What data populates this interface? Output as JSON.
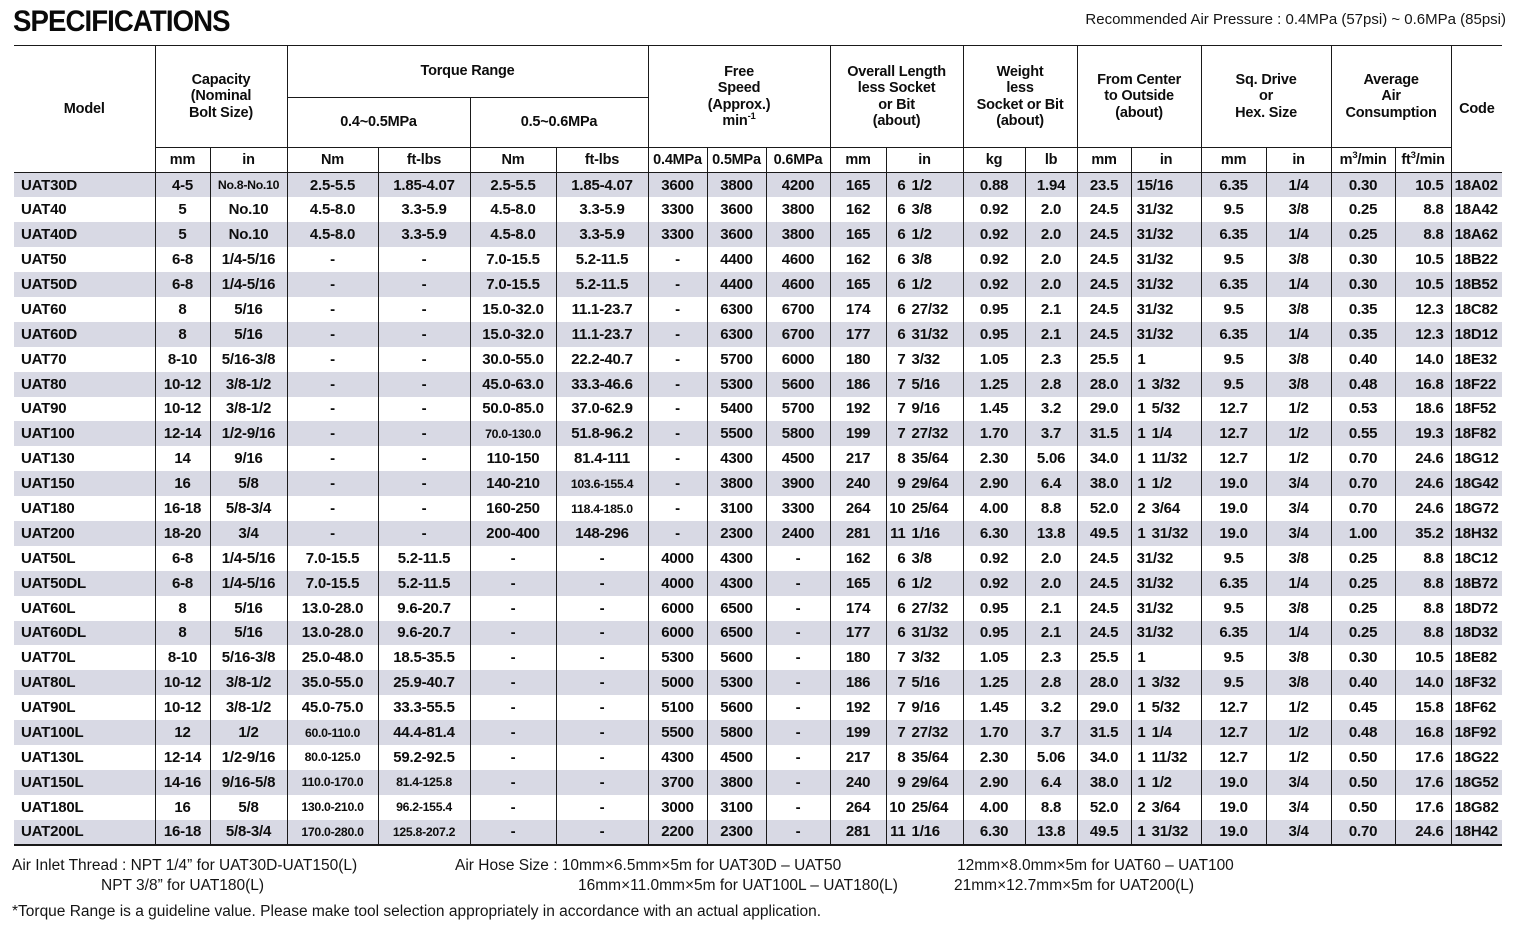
{
  "page": {
    "title": "SPECIFICATIONS",
    "air_pressure_note": "Recommended Air Pressure : 0.4MPa (57psi) ~ 0.6MPa (85psi)"
  },
  "table": {
    "header_rows": [
      [
        {
          "text": "Model",
          "rowspan": 3
        },
        {
          "text": "Capacity\n(Nominal\nBolt Size)",
          "colspan": 2,
          "rowspan": 2
        },
        {
          "text": "Torque Range",
          "colspan": 4
        },
        {
          "text": "Free\nSpeed\n(Approx.)\nmin^-1",
          "colspan": 3,
          "rowspan": 2
        },
        {
          "text": "Overall Length\nless Socket\nor Bit\n(about)",
          "colspan": 2,
          "rowspan": 2
        },
        {
          "text": "Weight\nless\nSocket or Bit\n(about)",
          "colspan": 2,
          "rowspan": 2
        },
        {
          "text": "From Center\nto Outside\n(about)",
          "colspan": 2,
          "rowspan": 2
        },
        {
          "text": "Sq. Drive\nor\nHex. Size",
          "colspan": 2,
          "rowspan": 2
        },
        {
          "text": "Average\nAir\nConsumption",
          "colspan": 2,
          "rowspan": 2
        },
        {
          "text": "Code",
          "rowspan": 3
        }
      ],
      [
        {
          "text": "0.4~0.5MPa",
          "colspan": 2
        },
        {
          "text": "0.5~0.6MPa",
          "colspan": 2
        }
      ],
      [
        {
          "text": "mm"
        },
        {
          "text": "in"
        },
        {
          "text": "Nm"
        },
        {
          "text": "ft-lbs"
        },
        {
          "text": "Nm"
        },
        {
          "text": "ft-lbs"
        },
        {
          "text": "0.4MPa"
        },
        {
          "text": "0.5MPa"
        },
        {
          "text": "0.6MPa"
        },
        {
          "text": "mm"
        },
        {
          "text": "in"
        },
        {
          "text": "kg"
        },
        {
          "text": "lb"
        },
        {
          "text": "mm"
        },
        {
          "text": "in"
        },
        {
          "text": "mm"
        },
        {
          "text": "in"
        },
        {
          "text": "m^3/min"
        },
        {
          "text": "ft^3/min"
        }
      ]
    ],
    "rows": [
      [
        "UAT30D",
        "4-5",
        "No.8-No.10",
        "2.5-5.5",
        "1.85-4.07",
        "2.5-5.5",
        "1.85-4.07",
        "3600",
        "3800",
        "4200",
        "165",
        "6 1/2",
        "0.88",
        "1.94",
        "23.5",
        "15/16",
        "6.35",
        "1/4",
        "0.30",
        "10.5",
        "18A02"
      ],
      [
        "UAT40",
        "5",
        "No.10",
        "4.5-8.0",
        "3.3-5.9",
        "4.5-8.0",
        "3.3-5.9",
        "3300",
        "3600",
        "3800",
        "162",
        "6 3/8",
        "0.92",
        "2.0",
        "24.5",
        "31/32",
        "9.5",
        "3/8",
        "0.25",
        "8.8",
        "18A42"
      ],
      [
        "UAT40D",
        "5",
        "No.10",
        "4.5-8.0",
        "3.3-5.9",
        "4.5-8.0",
        "3.3-5.9",
        "3300",
        "3600",
        "3800",
        "165",
        "6 1/2",
        "0.92",
        "2.0",
        "24.5",
        "31/32",
        "6.35",
        "1/4",
        "0.25",
        "8.8",
        "18A62"
      ],
      [
        "UAT50",
        "6-8",
        "1/4-5/16",
        "-",
        "-",
        "7.0-15.5",
        "5.2-11.5",
        "-",
        "4400",
        "4600",
        "162",
        "6 3/8",
        "0.92",
        "2.0",
        "24.5",
        "31/32",
        "9.5",
        "3/8",
        "0.30",
        "10.5",
        "18B22"
      ],
      [
        "UAT50D",
        "6-8",
        "1/4-5/16",
        "-",
        "-",
        "7.0-15.5",
        "5.2-11.5",
        "-",
        "4400",
        "4600",
        "165",
        "6 1/2",
        "0.92",
        "2.0",
        "24.5",
        "31/32",
        "6.35",
        "1/4",
        "0.30",
        "10.5",
        "18B52"
      ],
      [
        "UAT60",
        "8",
        "5/16",
        "-",
        "-",
        "15.0-32.0",
        "11.1-23.7",
        "-",
        "6300",
        "6700",
        "174",
        "6 27/32",
        "0.95",
        "2.1",
        "24.5",
        "31/32",
        "9.5",
        "3/8",
        "0.35",
        "12.3",
        "18C82"
      ],
      [
        "UAT60D",
        "8",
        "5/16",
        "-",
        "-",
        "15.0-32.0",
        "11.1-23.7",
        "-",
        "6300",
        "6700",
        "177",
        "6 31/32",
        "0.95",
        "2.1",
        "24.5",
        "31/32",
        "6.35",
        "1/4",
        "0.35",
        "12.3",
        "18D12"
      ],
      [
        "UAT70",
        "8-10",
        "5/16-3/8",
        "-",
        "-",
        "30.0-55.0",
        "22.2-40.7",
        "-",
        "5700",
        "6000",
        "180",
        "7 3/32",
        "1.05",
        "2.3",
        "25.5",
        "1",
        "9.5",
        "3/8",
        "0.40",
        "14.0",
        "18E32"
      ],
      [
        "UAT80",
        "10-12",
        "3/8-1/2",
        "-",
        "-",
        "45.0-63.0",
        "33.3-46.6",
        "-",
        "5300",
        "5600",
        "186",
        "7 5/16",
        "1.25",
        "2.8",
        "28.0",
        "1 3/32",
        "9.5",
        "3/8",
        "0.48",
        "16.8",
        "18F22"
      ],
      [
        "UAT90",
        "10-12",
        "3/8-1/2",
        "-",
        "-",
        "50.0-85.0",
        "37.0-62.9",
        "-",
        "5400",
        "5700",
        "192",
        "7 9/16",
        "1.45",
        "3.2",
        "29.0",
        "1 5/32",
        "12.7",
        "1/2",
        "0.53",
        "18.6",
        "18F52"
      ],
      [
        "UAT100",
        "12-14",
        "1/2-9/16",
        "-",
        "-",
        "70.0-130.0",
        "51.8-96.2",
        "-",
        "5500",
        "5800",
        "199",
        "7 27/32",
        "1.70",
        "3.7",
        "31.5",
        "1 1/4",
        "12.7",
        "1/2",
        "0.55",
        "19.3",
        "18F82"
      ],
      [
        "UAT130",
        "14",
        "9/16",
        "-",
        "-",
        "110-150",
        "81.4-111",
        "-",
        "4300",
        "4500",
        "217",
        "8 35/64",
        "2.30",
        "5.06",
        "34.0",
        "1 11/32",
        "12.7",
        "1/2",
        "0.70",
        "24.6",
        "18G12"
      ],
      [
        "UAT150",
        "16",
        "5/8",
        "-",
        "-",
        "140-210",
        "103.6-155.4",
        "-",
        "3800",
        "3900",
        "240",
        "9 29/64",
        "2.90",
        "6.4",
        "38.0",
        "1 1/2",
        "19.0",
        "3/4",
        "0.70",
        "24.6",
        "18G42"
      ],
      [
        "UAT180",
        "16-18",
        "5/8-3/4",
        "-",
        "-",
        "160-250",
        "118.4-185.0",
        "-",
        "3100",
        "3300",
        "264",
        "10 25/64",
        "4.00",
        "8.8",
        "52.0",
        "2 3/64",
        "19.0",
        "3/4",
        "0.70",
        "24.6",
        "18G72"
      ],
      [
        "UAT200",
        "18-20",
        "3/4",
        "-",
        "-",
        "200-400",
        "148-296",
        "-",
        "2300",
        "2400",
        "281",
        "11 1/16",
        "6.30",
        "13.8",
        "49.5",
        "1 31/32",
        "19.0",
        "3/4",
        "1.00",
        "35.2",
        "18H32"
      ],
      [
        "UAT50L",
        "6-8",
        "1/4-5/16",
        "7.0-15.5",
        "5.2-11.5",
        "-",
        "-",
        "4000",
        "4300",
        "-",
        "162",
        "6 3/8",
        "0.92",
        "2.0",
        "24.5",
        "31/32",
        "9.5",
        "3/8",
        "0.25",
        "8.8",
        "18C12"
      ],
      [
        "UAT50DL",
        "6-8",
        "1/4-5/16",
        "7.0-15.5",
        "5.2-11.5",
        "-",
        "-",
        "4000",
        "4300",
        "-",
        "165",
        "6 1/2",
        "0.92",
        "2.0",
        "24.5",
        "31/32",
        "6.35",
        "1/4",
        "0.25",
        "8.8",
        "18B72"
      ],
      [
        "UAT60L",
        "8",
        "5/16",
        "13.0-28.0",
        "9.6-20.7",
        "-",
        "-",
        "6000",
        "6500",
        "-",
        "174",
        "6 27/32",
        "0.95",
        "2.1",
        "24.5",
        "31/32",
        "9.5",
        "3/8",
        "0.25",
        "8.8",
        "18D72"
      ],
      [
        "UAT60DL",
        "8",
        "5/16",
        "13.0-28.0",
        "9.6-20.7",
        "-",
        "-",
        "6000",
        "6500",
        "-",
        "177",
        "6 31/32",
        "0.95",
        "2.1",
        "24.5",
        "31/32",
        "6.35",
        "1/4",
        "0.25",
        "8.8",
        "18D32"
      ],
      [
        "UAT70L",
        "8-10",
        "5/16-3/8",
        "25.0-48.0",
        "18.5-35.5",
        "-",
        "-",
        "5300",
        "5600",
        "-",
        "180",
        "7 3/32",
        "1.05",
        "2.3",
        "25.5",
        "1",
        "9.5",
        "3/8",
        "0.30",
        "10.5",
        "18E82"
      ],
      [
        "UAT80L",
        "10-12",
        "3/8-1/2",
        "35.0-55.0",
        "25.9-40.7",
        "-",
        "-",
        "5000",
        "5300",
        "-",
        "186",
        "7 5/16",
        "1.25",
        "2.8",
        "28.0",
        "1 3/32",
        "9.5",
        "3/8",
        "0.40",
        "14.0",
        "18F32"
      ],
      [
        "UAT90L",
        "10-12",
        "3/8-1/2",
        "45.0-75.0",
        "33.3-55.5",
        "-",
        "-",
        "5100",
        "5600",
        "-",
        "192",
        "7 9/16",
        "1.45",
        "3.2",
        "29.0",
        "1 5/32",
        "12.7",
        "1/2",
        "0.45",
        "15.8",
        "18F62"
      ],
      [
        "UAT100L",
        "12",
        "1/2",
        "60.0-110.0",
        "44.4-81.4",
        "-",
        "-",
        "5500",
        "5800",
        "-",
        "199",
        "7 27/32",
        "1.70",
        "3.7",
        "31.5",
        "1 1/4",
        "12.7",
        "1/2",
        "0.48",
        "16.8",
        "18F92"
      ],
      [
        "UAT130L",
        "12-14",
        "1/2-9/16",
        "80.0-125.0",
        "59.2-92.5",
        "-",
        "-",
        "4300",
        "4500",
        "-",
        "217",
        "8 35/64",
        "2.30",
        "5.06",
        "34.0",
        "1 11/32",
        "12.7",
        "1/2",
        "0.50",
        "17.6",
        "18G22"
      ],
      [
        "UAT150L",
        "14-16",
        "9/16-5/8",
        "110.0-170.0",
        "81.4-125.8",
        "-",
        "-",
        "3700",
        "3800",
        "-",
        "240",
        "9 29/64",
        "2.90",
        "6.4",
        "38.0",
        "1 1/2",
        "19.0",
        "3/4",
        "0.50",
        "17.6",
        "18G52"
      ],
      [
        "UAT180L",
        "16",
        "5/8",
        "130.0-210.0",
        "96.2-155.4",
        "-",
        "-",
        "3000",
        "3100",
        "-",
        "264",
        "10 25/64",
        "4.00",
        "8.8",
        "52.0",
        "2 3/64",
        "19.0",
        "3/4",
        "0.50",
        "17.6",
        "18G82"
      ],
      [
        "UAT200L",
        "16-18",
        "5/8-3/4",
        "170.0-280.0",
        "125.8-207.2",
        "-",
        "-",
        "2200",
        "2300",
        "-",
        "281",
        "11 1/16",
        "6.30",
        "13.8",
        "49.5",
        "1 31/32",
        "19.0",
        "3/4",
        "0.70",
        "24.6",
        "18H42"
      ]
    ]
  },
  "footnotes": {
    "air_inlet_line1": "Air Inlet Thread : NPT 1/4” for UAT30D-UAT150(L)",
    "air_inlet_line2": "NPT 3/8” for UAT180(L)",
    "air_hose_line1": "Air Hose Size : 10mm×6.5mm×5m for UAT30D – UAT50",
    "air_hose_line2": "16mm×11.0mm×5m for UAT100L – UAT180(L)",
    "air_hose_line3": "12mm×8.0mm×5m for UAT60 – UAT100",
    "air_hose_line4": "21mm×12.7mm×5m for UAT200(L)",
    "torque_note": "*Torque Range is a guideline value. Please make tool selection appropriately in accordance with an actual application."
  }
}
